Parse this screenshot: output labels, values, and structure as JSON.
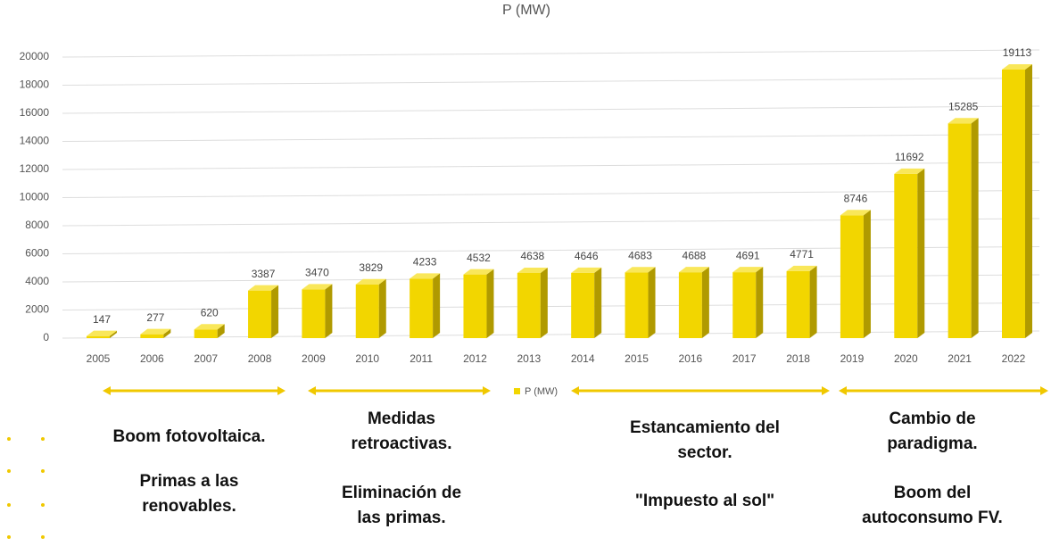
{
  "chart_data": {
    "type": "bar3d",
    "title": "P (MW)",
    "categories": [
      "2005",
      "2006",
      "2007",
      "2008",
      "2009",
      "2010",
      "2011",
      "2012",
      "2013",
      "2014",
      "2015",
      "2016",
      "2017",
      "2018",
      "2019",
      "2020",
      "2021",
      "2022"
    ],
    "series": [
      {
        "name": "P (MW)",
        "color": "#f2d600",
        "values": [
          147,
          277,
          620,
          3387,
          3470,
          3829,
          4233,
          4532,
          4638,
          4646,
          4683,
          4688,
          4691,
          4771,
          8746,
          11692,
          15285,
          19113
        ]
      }
    ],
    "ylim": [
      0,
      20000
    ],
    "yticks": [
      0,
      2000,
      4000,
      6000,
      8000,
      10000,
      12000,
      14000,
      16000,
      18000,
      20000
    ],
    "grid": true,
    "legend": "bottom",
    "annotations": [
      {
        "paragraphs": [
          [
            "Boom fotovoltaica."
          ],
          [
            "Primas a las",
            "renovables."
          ]
        ]
      },
      {
        "paragraphs": [
          [
            "Medidas",
            "retroactivas."
          ],
          [
            "Eliminación de",
            "las primas."
          ]
        ]
      },
      {
        "paragraphs": [
          [
            "Estancamiento del",
            "sector."
          ],
          [
            "\"Impuesto al sol\""
          ]
        ]
      },
      {
        "paragraphs": [
          [
            "Cambio de",
            "paradigma."
          ],
          [
            "Boom del",
            "autoconsumo FV."
          ]
        ]
      }
    ]
  }
}
